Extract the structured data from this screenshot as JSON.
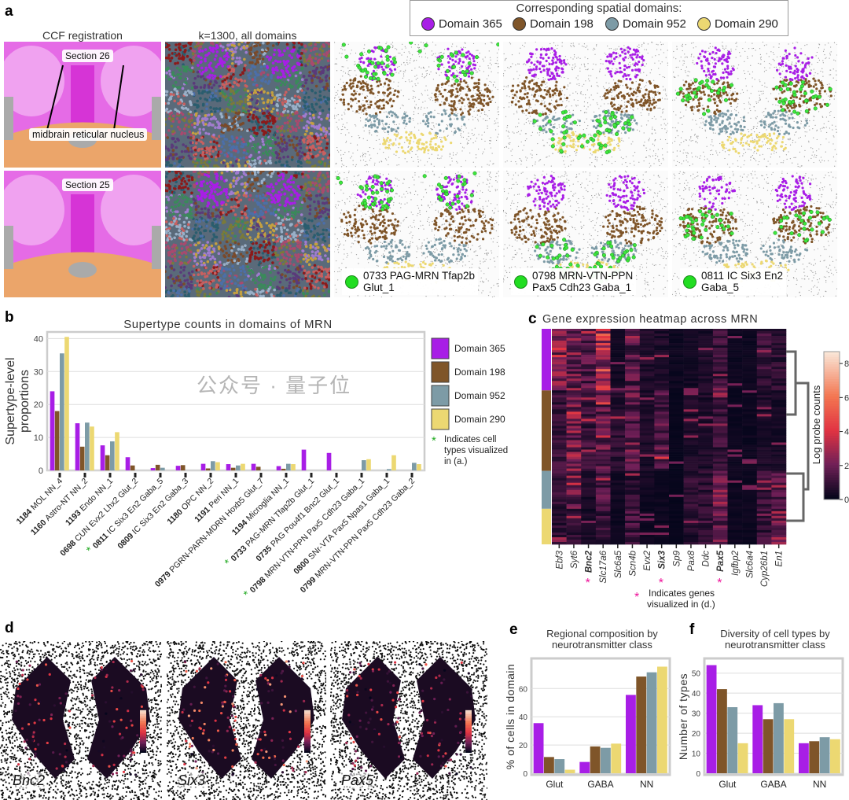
{
  "panel_labels": {
    "a": "a",
    "b": "b",
    "c": "c",
    "d": "d",
    "e": "e",
    "f": "f"
  },
  "legend": {
    "title": "Corresponding spatial domains:",
    "items": [
      {
        "label": "Domain 365",
        "color": "#a81ee6"
      },
      {
        "label": "Domain 198",
        "color": "#7f5529"
      },
      {
        "label": "Domain 952",
        "color": "#7d9ba6"
      },
      {
        "label": "Domain 290",
        "color": "#ecd872"
      }
    ]
  },
  "panel_a": {
    "col_titles": [
      "CCF registration",
      "k=1300, all domains"
    ],
    "section_labels": [
      "Section 26",
      "Section 25"
    ],
    "annotation": "midbrain reticular nucleus",
    "captions": [
      {
        "line1": "0733 PAG-MRN Tfap2b",
        "line2": "Glut_1"
      },
      {
        "line1": "0798 MRN-VTN-PPN",
        "line2": "Pax5 Cdh23 Gaba_1"
      },
      {
        "line1": "0811 IC Six3 En2",
        "line2": "Gaba_5"
      }
    ],
    "highlight_color": "#22dd22"
  },
  "chart_data": [
    {
      "id": "b",
      "type": "bar",
      "title": "Supertype counts in domains of MRN",
      "xlabel": "",
      "ylabel": "Supertype-level\nproportions",
      "ylim": [
        0,
        42
      ],
      "yticks": [
        0,
        10,
        20,
        30,
        40
      ],
      "grid": true,
      "legend": "right",
      "categories": [
        {
          "code": "1184",
          "name": "MOL NN_4",
          "star": false
        },
        {
          "code": "1160",
          "name": "Astro-NT NN_2",
          "star": false
        },
        {
          "code": "1193",
          "name": "Endo NN_1",
          "star": false
        },
        {
          "code": "0698",
          "name": "CUN Evx2 Lhx2 Glut_2",
          "star": false
        },
        {
          "code": "0811",
          "name": "IC Six3 En2 Gaba_5",
          "star": true
        },
        {
          "code": "0809",
          "name": "IC Six3 En2 Gaba_3",
          "star": false
        },
        {
          "code": "1180",
          "name": "OPC NN_2",
          "star": false
        },
        {
          "code": "1191",
          "name": "Peri NN_1",
          "star": false
        },
        {
          "code": "0979",
          "name": "PGRN-PARN-MDRN Hoxb5 Glut_7",
          "star": false
        },
        {
          "code": "1194",
          "name": "Microglia NN_1",
          "star": false
        },
        {
          "code": "0733",
          "name": "PAG-MRN Tfap2b Glut_1",
          "star": true
        },
        {
          "code": "0735",
          "name": "PAG Pou4f1 Bnc2 Glut_1",
          "star": false
        },
        {
          "code": "0798",
          "name": "MRN-VTN-PPN Pax5 Cdh23 Gaba_1",
          "star": true
        },
        {
          "code": "0800",
          "name": "SNr-VTA Pax5 Npas1 Gaba_1",
          "star": false
        },
        {
          "code": "0799",
          "name": "MRN-VTN-PPN Pax5 Cdh23 Gaba_2",
          "star": false
        }
      ],
      "series": [
        {
          "name": "Domain 365",
          "values": [
            24,
            14.3,
            7.6,
            4,
            0.7,
            1.4,
            2,
            1.9,
            2,
            1.3,
            6.3,
            5.3,
            0,
            0,
            0
          ]
        },
        {
          "name": "Domain 198",
          "values": [
            18,
            7.2,
            4.6,
            1.5,
            1.7,
            1.6,
            0.6,
            0.8,
            1.1,
            0.5,
            0,
            0,
            0,
            0,
            0
          ]
        },
        {
          "name": "Domain 952",
          "values": [
            35.5,
            14.5,
            8.8,
            0,
            0.8,
            0,
            2.8,
            1.5,
            0,
            2,
            0,
            0,
            3.1,
            0.4,
            2.3
          ]
        },
        {
          "name": "Domain 290",
          "values": [
            40.5,
            13.3,
            11.6,
            0,
            0,
            0,
            2.5,
            2,
            0,
            1.9,
            0,
            0,
            3.4,
            4.6,
            1.9
          ]
        }
      ],
      "note": "Indicates cell types visualized in (a.)"
    },
    {
      "id": "c",
      "type": "heatmap",
      "title": "Gene expression heatmap across MRN",
      "genes": [
        "Ebf3",
        "Syt6",
        "Bnc2",
        "Slc17a6",
        "Slc6a5",
        "Scn4b",
        "Evx2",
        "Six3",
        "Sp9",
        "Pax8",
        "Ddc",
        "Pax5",
        "Igfbp2",
        "Slc6a4",
        "Cyp26b1",
        "En1"
      ],
      "highlighted_genes": [
        "Bnc2",
        "Six3",
        "Pax5"
      ],
      "row_groups": [
        "Domain 365",
        "Domain 198",
        "Domain 952",
        "Domain 290"
      ],
      "approx_mean_log_counts": [
        [
          2.5,
          2,
          1.5,
          3.5,
          0.3,
          1.5,
          0.5,
          0.5,
          0.2,
          0.3,
          0.5,
          1,
          0.2,
          0.2,
          1,
          0.8
        ],
        [
          1,
          2.2,
          1,
          1.8,
          0.8,
          1.8,
          0.5,
          1.5,
          0.1,
          0.5,
          0.5,
          1,
          0.2,
          0.2,
          0.5,
          0.4
        ],
        [
          1,
          1.8,
          0.5,
          1.5,
          0.3,
          0.8,
          0.3,
          0.2,
          0.1,
          0.8,
          0.8,
          2,
          0.2,
          0.2,
          1,
          2
        ],
        [
          0.8,
          0.8,
          0.4,
          1,
          0.2,
          1.2,
          0.2,
          0.2,
          0.1,
          0.6,
          1,
          2,
          0.2,
          0.2,
          1,
          2.2
        ]
      ],
      "colorbar": {
        "label": "Log probe counts",
        "ticks": [
          0,
          2,
          4,
          6,
          8
        ],
        "range": [
          0,
          8.7
        ]
      },
      "note": "Indicates genes visualized in (d.)",
      "note_color": "#ee1199"
    },
    {
      "id": "e",
      "type": "bar",
      "title": "Regional composition by\nneurotransmitter class",
      "ylabel": "% of cells in domain",
      "ylim": [
        0,
        78
      ],
      "yticks": [
        0,
        20,
        40,
        60
      ],
      "grid": true,
      "categories": [
        "Glut",
        "GABA",
        "NN"
      ],
      "series": [
        {
          "name": "Domain 365",
          "values": [
            35.5,
            8,
            55.5
          ]
        },
        {
          "name": "Domain 198",
          "values": [
            11.5,
            19,
            68.5
          ]
        },
        {
          "name": "Domain 952",
          "values": [
            10,
            18,
            71.5
          ]
        },
        {
          "name": "Domain 290",
          "values": [
            2.5,
            21,
            75.5
          ]
        }
      ]
    },
    {
      "id": "f",
      "type": "bar",
      "title": "Diversity of cell types by\nneurotransmitter class",
      "ylabel": "Number of types",
      "ylim": [
        0,
        55
      ],
      "yticks": [
        0,
        10,
        20,
        30,
        40,
        50
      ],
      "grid": true,
      "categories": [
        "Glut",
        "GABA",
        "NN"
      ],
      "series": [
        {
          "name": "Domain 365",
          "values": [
            54,
            34,
            15
          ]
        },
        {
          "name": "Domain 198",
          "values": [
            42,
            27,
            16
          ]
        },
        {
          "name": "Domain 952",
          "values": [
            33,
            35,
            18
          ]
        },
        {
          "name": "Domain 290",
          "values": [
            15,
            27,
            17
          ]
        }
      ]
    }
  ],
  "panel_d": {
    "genes": [
      "Bnc2",
      "Six3",
      "Pax5"
    ]
  },
  "watermark": "公众号 · 量子位"
}
